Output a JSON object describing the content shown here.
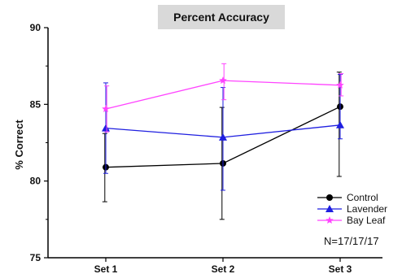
{
  "chart_data": {
    "type": "line",
    "title": "Percent Accuracy",
    "xlabel": "",
    "ylabel": "% Correct",
    "categories": [
      "Set 1",
      "Set 2",
      "Set 3"
    ],
    "ylim": [
      75,
      90
    ],
    "yticks": [
      75,
      80,
      85,
      90
    ],
    "grid": false,
    "legend_position": "bottom-right",
    "annotation": "N=17/17/17",
    "series": [
      {
        "name": "Control",
        "color": "#000000",
        "marker": "circle",
        "values": [
          80.9,
          81.15,
          84.85
        ],
        "err_low": [
          78.65,
          77.5,
          80.3
        ],
        "err_high": [
          83.1,
          84.8,
          87.1
        ]
      },
      {
        "name": "Lavender",
        "color": "#1f1fe0",
        "marker": "triangle",
        "values": [
          83.45,
          82.85,
          83.65
        ],
        "err_low": [
          80.5,
          79.4,
          82.75
        ],
        "err_high": [
          86.4,
          86.1,
          86.95
        ]
      },
      {
        "name": "Bay Leaf",
        "color": "#ff44ff",
        "marker": "star",
        "values": [
          84.7,
          86.55,
          86.25
        ],
        "err_low": [
          83.2,
          85.3,
          85.55
        ],
        "err_high": [
          86.2,
          87.65,
          87.0
        ]
      }
    ]
  }
}
